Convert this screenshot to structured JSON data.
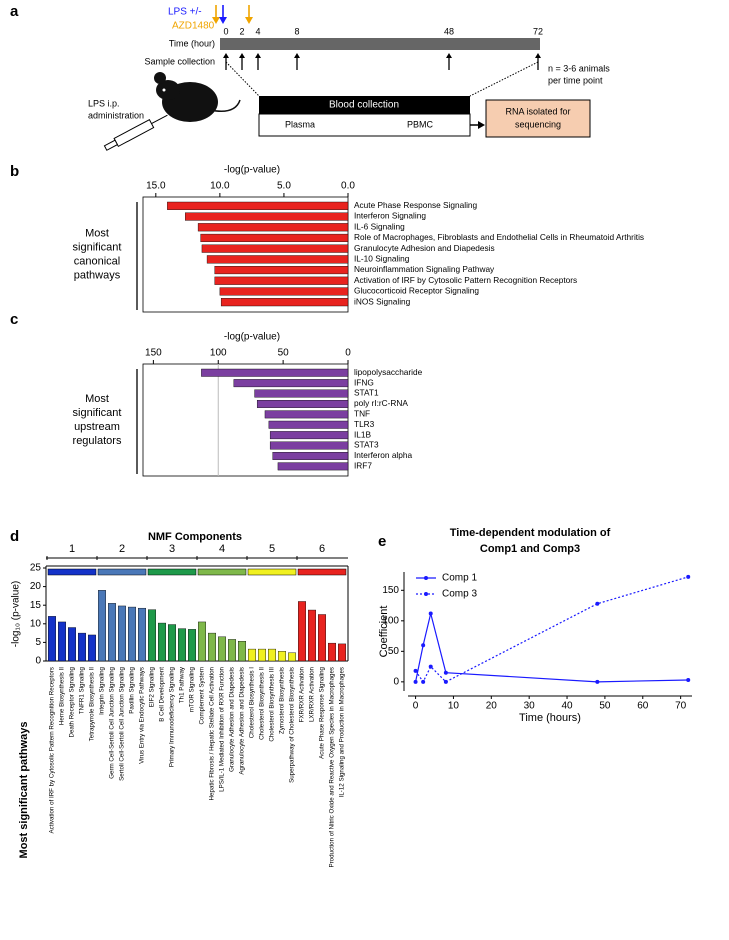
{
  "panel_labels": [
    "a",
    "b",
    "c",
    "d",
    "e"
  ],
  "diagram": {
    "lps": "LPS +/-",
    "azd": "AZD1480",
    "time_label": "Time (hour)",
    "time_points": [
      0,
      2,
      4,
      8,
      48,
      72
    ],
    "sample_collection": "Sample collection",
    "n_note": [
      "n = 3-6 animals",
      "per time point"
    ],
    "lps_admin": [
      "LPS i.p.",
      "administration"
    ],
    "blood": "Blood collection",
    "plasma": "Plasma",
    "pbmc": "PBMC",
    "rna": [
      "RNA isolated for",
      "sequencing"
    ]
  },
  "chart_data": [
    {
      "type": "hbar",
      "axis_title": "-log(p-value)",
      "side_label": [
        "Most",
        "significant",
        "canonical",
        "pathways"
      ],
      "color": "#e8231f",
      "xlim": [
        16,
        0
      ],
      "xticks": [
        {
          "value": 15,
          "label": "15.0"
        },
        {
          "value": 10,
          "label": "10.0"
        },
        {
          "value": 5,
          "label": "5.0"
        },
        {
          "value": 0,
          "label": "0.0"
        }
      ],
      "categories": [
        "Acute Phase Response Signaling",
        "Interferon Signaling",
        "IL-6 Signaling",
        "Role of Macrophages, Fibroblasts and Endothelial Cells in Rheumatoid Arthritis",
        "Granulocyte Adhesion and Diapedesis",
        "IL-10 Signaling",
        "Neuroinflammation Signaling Pathway",
        "Activation of IRF by Cytosolic Pattern Recognition Receptors",
        "Glucocorticoid Receptor Signaling",
        "iNOS Signaling"
      ],
      "values": [
        14.1,
        12.7,
        11.7,
        11.5,
        11.4,
        11.0,
        10.4,
        10.4,
        10.0,
        9.9
      ]
    },
    {
      "type": "hbar",
      "axis_title": "-log(p-value)",
      "side_label": [
        "Most",
        "significant",
        "upstream",
        "regulators"
      ],
      "color": "#7b3fa0",
      "xlim": [
        158,
        0
      ],
      "xticks": [
        150,
        100,
        50,
        0
      ],
      "reference_line": 100,
      "categories": [
        "lipopolysaccharide",
        "IFNG",
        "STAT1",
        "poly rI:rC-RNA",
        "TNF",
        "TLR3",
        "IL1B",
        "STAT3",
        "Interferon alpha",
        "IRF7"
      ],
      "values": [
        113,
        88,
        72,
        70,
        64,
        61,
        60,
        60,
        58,
        54
      ]
    },
    {
      "type": "grouped-bar",
      "title": "NMF Components",
      "y_label": "-log₁₀ (p-value)",
      "x_label": "Most significant pathways",
      "ylim": [
        0,
        25
      ],
      "yticks": [
        0,
        5,
        10,
        15,
        20,
        25
      ],
      "groups": [
        {
          "label": "1",
          "color": "#1432c8",
          "categories": [
            "Activation of IRF by Cytosolic Pattern Recognition Receptors",
            "Heme Biosynthesis II",
            "Death Receptor Signaling",
            "TNFR1 Signaling",
            "Tetrapyrrole Biosynthesis II"
          ],
          "values": [
            12,
            10.5,
            9,
            7.5,
            7
          ]
        },
        {
          "label": "2",
          "color": "#4a78b8",
          "categories": [
            "Integrin Signaling",
            "Germ Cell-Sertoli Cell Junction Signaling",
            "Sertoli Cell-Sertoli Cell Junction Signaling",
            "Paxillin Signaling",
            "Virus Entry via Endocytic Pathways"
          ],
          "values": [
            19,
            15.5,
            14.8,
            14.5,
            14.2
          ]
        },
        {
          "label": "3",
          "color": "#1e9a4a",
          "categories": [
            "EIF2 Signaling",
            "B Cell Development",
            "Primary Immunodeficiency Signaling",
            "Th1 Pathway",
            "mTOR Signaling"
          ],
          "values": [
            13.8,
            10.2,
            9.8,
            8.7,
            8.5
          ]
        },
        {
          "label": "4",
          "color": "#7fb84a",
          "categories": [
            "Complement System",
            "Hepatic Fibrosis / Hepatic Stellate Cell Activation",
            "LPS/IL-1 Mediated Inhibition of RXR Function",
            "Granulocyte Adhesion and Diapedesis",
            "Agranulocyte Adhesion and Diapedesis"
          ],
          "values": [
            10.5,
            7.5,
            6.5,
            5.8,
            5.3
          ]
        },
        {
          "label": "5",
          "color": "#f0f020",
          "categories": [
            "Cholesterol Biosynthesis I",
            "Cholesterol Biosynthesis II",
            "Cholesterol Biosynthesis III",
            "Zymosterol Biosynthesis",
            "Superpathway of Cholesterol Biosynthesis"
          ],
          "values": [
            3.2,
            3.2,
            3.2,
            2.6,
            2.2
          ]
        },
        {
          "label": "6",
          "color": "#e8231f",
          "categories": [
            "FXR/RXR Activation",
            "LXR/RXR Activation",
            "Acute Phase Response Signaling",
            "Production of Nitric Oxide and Reactive Oxygen Species in Macrophages",
            "IL-12 Signaling and Production in Macrophages"
          ],
          "values": [
            16,
            13.7,
            12.5,
            4.8,
            4.6
          ]
        }
      ]
    },
    {
      "type": "line",
      "title": [
        "Time-dependent modulation of",
        "Comp1 and Comp3"
      ],
      "x_label": "Time (hours)",
      "y_label": "Coefficient",
      "x": [
        0,
        2,
        4,
        8,
        48,
        72
      ],
      "xlim": [
        -2,
        73
      ],
      "xticks": [
        0,
        10,
        20,
        30,
        40,
        50,
        60,
        70
      ],
      "ylim": [
        -15,
        180
      ],
      "yticks": [
        0,
        50,
        100,
        150
      ],
      "legend": "upper-left",
      "series": [
        {
          "name": "Comp 1",
          "color": "#1a1aff",
          "dashed": false,
          "values": [
            0,
            60,
            112,
            15,
            0,
            3
          ]
        },
        {
          "name": "Comp 3",
          "color": "#1a1aff",
          "dashed": true,
          "values": [
            18,
            0,
            25,
            0,
            128,
            172
          ]
        }
      ]
    }
  ]
}
